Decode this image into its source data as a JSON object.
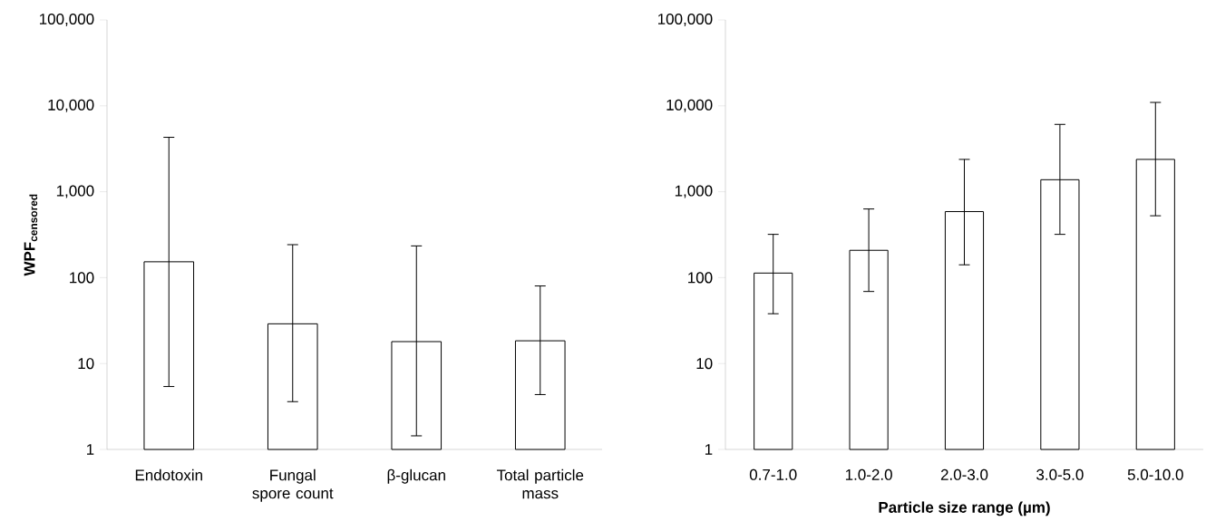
{
  "chart_data": [
    {
      "type": "bar",
      "ylabel": "WPF$_{censored}$",
      "categories": [
        "Endotoxin",
        "Fungal spore count",
        "β-glucan",
        "Total particle mass"
      ],
      "values": [
        153,
        29,
        18,
        18.4
      ],
      "color": "#ffffff",
      "errors": [
        [
          5.4,
          4300
        ],
        [
          3.6,
          242
        ],
        [
          1.44,
          234
        ],
        [
          4.35,
          80
        ]
      ],
      "log": "y",
      "ylim": [
        1,
        100000
      ],
      "yticks": [
        1,
        10,
        {
          "value": 100,
          "label": "100"
        },
        {
          "value": 1000,
          "label": "1,000"
        },
        {
          "value": 10000,
          "label": "10,000"
        },
        {
          "value": 100000,
          "label": "100,000"
        }
      ]
    },
    {
      "type": "bar",
      "xlabel": "Particle size range (µm)",
      "categories": [
        "0.7-1.0",
        "1.0-2.0",
        "2.0-3.0",
        "3.0-5.0",
        "5.0-10.0"
      ],
      "values": [
        113,
        208,
        587,
        1380,
        2380
      ],
      "color": "#ffffff",
      "errors": [
        [
          38,
          319
        ],
        [
          69,
          630
        ],
        [
          141,
          2380
        ],
        [
          319,
          6080
        ],
        [
          525,
          10960
        ]
      ],
      "log": "y",
      "ylim": [
        1,
        100000
      ],
      "yticks": [
        1,
        10,
        {
          "value": 100,
          "label": "100"
        },
        {
          "value": 1000,
          "label": "1,000"
        },
        {
          "value": 10000,
          "label": "10,000"
        },
        {
          "value": 100000,
          "label": "100,000"
        }
      ]
    }
  ]
}
